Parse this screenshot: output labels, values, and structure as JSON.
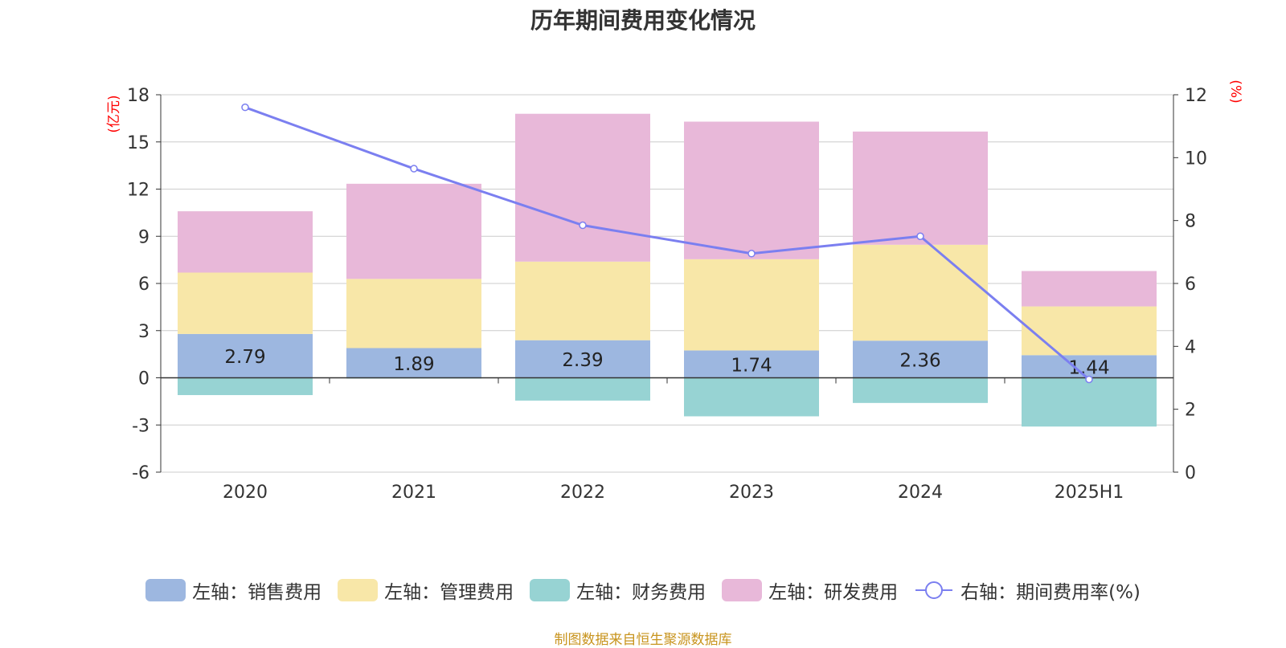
{
  "title": "历年期间费用变化情况",
  "source": "制图数据来自恒生聚源数据库",
  "chart_data": {
    "type": "bar",
    "stacked": true,
    "categories": [
      "2020",
      "2021",
      "2022",
      "2023",
      "2024",
      "2025H1"
    ],
    "left_axis": {
      "unit_label": "(亿元)",
      "range": [
        -6,
        18
      ],
      "ticks": [
        -6,
        -3,
        0,
        3,
        6,
        9,
        12,
        15,
        18
      ]
    },
    "right_axis": {
      "unit_label": "(%)",
      "range": [
        0,
        12
      ],
      "ticks": [
        0,
        2,
        4,
        6,
        8,
        10,
        12
      ]
    },
    "grid": true,
    "legend_position": "bottom",
    "series": [
      {
        "name": "左轴：销售费用",
        "axis": "left",
        "color": "#9db7e0",
        "values": [
          2.79,
          1.89,
          2.39,
          1.74,
          2.36,
          1.44
        ],
        "show_labels": true
      },
      {
        "name": "左轴：管理费用",
        "axis": "left",
        "color": "#f8e7a8",
        "values": [
          3.9,
          4.4,
          5.0,
          5.8,
          6.1,
          3.1
        ]
      },
      {
        "name": "左轴：财务费用",
        "axis": "left",
        "color": "#97d3d3",
        "values": [
          -1.1,
          -0.05,
          -1.45,
          -2.45,
          -1.6,
          -3.1
        ]
      },
      {
        "name": "左轴：研发费用",
        "axis": "left",
        "color": "#e8b8d9",
        "values": [
          3.9,
          6.05,
          9.4,
          8.75,
          7.2,
          2.25
        ]
      },
      {
        "name": "右轴：期间费用率(%)",
        "axis": "right",
        "type": "line",
        "color": "#7b7ff0",
        "values": [
          11.6,
          9.65,
          7.85,
          6.95,
          7.5,
          2.95
        ]
      }
    ]
  }
}
